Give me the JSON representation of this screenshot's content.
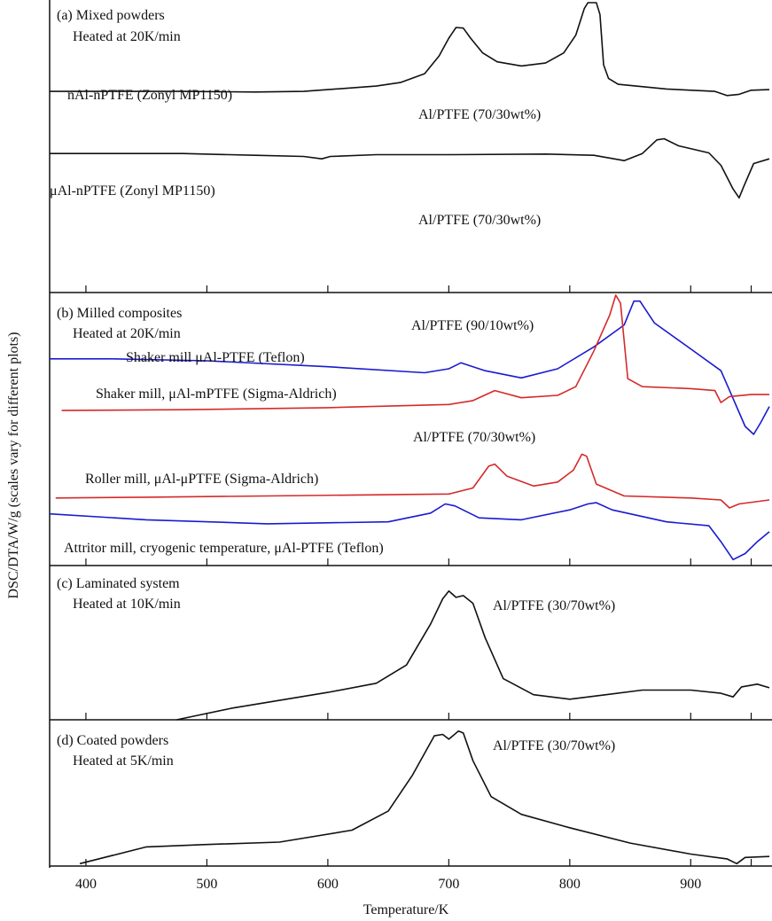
{
  "figure": {
    "ylabel": "DSC/DTA/W/g (scales vary for different plots)",
    "xlabel": "Temperature/K",
    "xticks": [
      400,
      500,
      600,
      700,
      800,
      900
    ],
    "xlim": [
      370,
      965
    ]
  },
  "colors": {
    "black": "#111111",
    "red": "#d42a2a",
    "blue": "#1a1ad0"
  },
  "chart_data": [
    {
      "type": "line",
      "panel": "a",
      "title": "(a) Mixed powders",
      "subtitle": "Heated at 20K/min",
      "xlabel": "Temperature/K",
      "ylabel": "DSC/DTA/W/g (scales vary for different plots)",
      "xlim": [
        370,
        965
      ],
      "ylim": [
        -1.2,
        3.7
      ],
      "series": [
        {
          "name": "nAl-nPTFE (Zonyl MP1150)",
          "annotation": "Al/PTFE (70/30wt%)",
          "color": "#111111",
          "points": [
            [
              370,
              2.2
            ],
            [
              420,
              2.2
            ],
            [
              480,
              2.2
            ],
            [
              540,
              2.19
            ],
            [
              580,
              2.2
            ],
            [
              600,
              2.23
            ],
            [
              640,
              2.29
            ],
            [
              660,
              2.35
            ],
            [
              680,
              2.5
            ],
            [
              692,
              2.8
            ],
            [
              700,
              3.1
            ],
            [
              706,
              3.28
            ],
            [
              712,
              3.27
            ],
            [
              718,
              3.1
            ],
            [
              728,
              2.85
            ],
            [
              740,
              2.7
            ],
            [
              760,
              2.63
            ],
            [
              780,
              2.68
            ],
            [
              795,
              2.85
            ],
            [
              805,
              3.15
            ],
            [
              812,
              3.6
            ],
            [
              815,
              3.7
            ],
            [
              822,
              3.7
            ],
            [
              825,
              3.5
            ],
            [
              828,
              2.65
            ],
            [
              832,
              2.42
            ],
            [
              840,
              2.32
            ],
            [
              880,
              2.24
            ],
            [
              920,
              2.2
            ],
            [
              930,
              2.13
            ],
            [
              940,
              2.15
            ],
            [
              950,
              2.22
            ],
            [
              965,
              2.23
            ]
          ]
        },
        {
          "name": "μAl-nPTFE (Zonyl MP1150)",
          "annotation": "Al/PTFE (70/30wt%)",
          "color": "#111111",
          "points": [
            [
              370,
              1.15
            ],
            [
              420,
              1.15
            ],
            [
              480,
              1.15
            ],
            [
              540,
              1.12
            ],
            [
              580,
              1.1
            ],
            [
              595,
              1.06
            ],
            [
              602,
              1.1
            ],
            [
              640,
              1.13
            ],
            [
              700,
              1.13
            ],
            [
              780,
              1.14
            ],
            [
              820,
              1.12
            ],
            [
              845,
              1.03
            ],
            [
              860,
              1.15
            ],
            [
              872,
              1.38
            ],
            [
              878,
              1.4
            ],
            [
              890,
              1.28
            ],
            [
              915,
              1.16
            ],
            [
              925,
              0.95
            ],
            [
              935,
              0.55
            ],
            [
              940,
              0.4
            ],
            [
              944,
              0.6
            ],
            [
              952,
              0.98
            ],
            [
              965,
              1.06
            ]
          ]
        }
      ]
    },
    {
      "type": "line",
      "panel": "b",
      "title": "(b) Milled composites",
      "subtitle": "Heated at 20K/min",
      "xlabel": "Temperature/K",
      "ylabel": "DSC/DTA/W/g (scales vary for different plots)",
      "xlim": [
        370,
        965
      ],
      "ylim": [
        -3.0,
        3.8
      ],
      "series": [
        {
          "name": "Shaker mill μAl-PTFE (Teflon)",
          "annotation": "Al/PTFE (90/10wt%)",
          "color": "#1a1ad0",
          "points": [
            [
              370,
              2.2
            ],
            [
              420,
              2.2
            ],
            [
              500,
              2.15
            ],
            [
              600,
              2.0
            ],
            [
              680,
              1.85
            ],
            [
              700,
              1.95
            ],
            [
              710,
              2.1
            ],
            [
              730,
              1.9
            ],
            [
              760,
              1.72
            ],
            [
              790,
              1.95
            ],
            [
              820,
              2.5
            ],
            [
              845,
              3.05
            ],
            [
              853,
              3.65
            ],
            [
              858,
              3.65
            ],
            [
              870,
              3.1
            ],
            [
              900,
              2.45
            ],
            [
              925,
              1.9
            ],
            [
              935,
              1.2
            ],
            [
              945,
              0.5
            ],
            [
              952,
              0.3
            ],
            [
              958,
              0.6
            ],
            [
              965,
              1.0
            ]
          ]
        },
        {
          "name": "Shaker mill, μAl-mPTFE (Sigma-Aldrich)",
          "annotation": "",
          "color": "#d42a2a",
          "points": [
            [
              380,
              0.9
            ],
            [
              480,
              0.92
            ],
            [
              600,
              0.97
            ],
            [
              700,
              1.05
            ],
            [
              720,
              1.15
            ],
            [
              738,
              1.4
            ],
            [
              760,
              1.22
            ],
            [
              790,
              1.28
            ],
            [
              805,
              1.5
            ],
            [
              820,
              2.4
            ],
            [
              833,
              3.3
            ],
            [
              838,
              3.8
            ],
            [
              842,
              3.6
            ],
            [
              848,
              1.7
            ],
            [
              860,
              1.5
            ],
            [
              900,
              1.45
            ],
            [
              920,
              1.4
            ],
            [
              925,
              1.1
            ],
            [
              932,
              1.25
            ],
            [
              950,
              1.3
            ],
            [
              965,
              1.3
            ]
          ]
        },
        {
          "name": "Roller mill, μAl-μPTFE (Sigma-Aldrich)",
          "annotation": "Al/PTFE (70/30wt%)",
          "color": "#d42a2a",
          "points": [
            [
              375,
              -1.3
            ],
            [
              450,
              -1.28
            ],
            [
              550,
              -1.25
            ],
            [
              700,
              -1.2
            ],
            [
              720,
              -1.05
            ],
            [
              733,
              -0.5
            ],
            [
              738,
              -0.45
            ],
            [
              748,
              -0.75
            ],
            [
              770,
              -1.0
            ],
            [
              790,
              -0.9
            ],
            [
              803,
              -0.6
            ],
            [
              810,
              -0.2
            ],
            [
              814,
              -0.25
            ],
            [
              822,
              -0.95
            ],
            [
              845,
              -1.25
            ],
            [
              900,
              -1.3
            ],
            [
              925,
              -1.35
            ],
            [
              932,
              -1.55
            ],
            [
              940,
              -1.45
            ],
            [
              965,
              -1.35
            ]
          ]
        },
        {
          "name": "Attritor mill, cryogenic temperature, μAl-PTFE (Teflon)",
          "annotation": "",
          "color": "#1a1ad0",
          "points": [
            [
              370,
              -1.7
            ],
            [
              450,
              -1.85
            ],
            [
              550,
              -1.95
            ],
            [
              650,
              -1.9
            ],
            [
              685,
              -1.68
            ],
            [
              697,
              -1.45
            ],
            [
              705,
              -1.5
            ],
            [
              725,
              -1.8
            ],
            [
              760,
              -1.85
            ],
            [
              800,
              -1.6
            ],
            [
              815,
              -1.45
            ],
            [
              822,
              -1.42
            ],
            [
              835,
              -1.6
            ],
            [
              880,
              -1.9
            ],
            [
              915,
              -2.0
            ],
            [
              925,
              -2.4
            ],
            [
              935,
              -2.85
            ],
            [
              945,
              -2.7
            ],
            [
              955,
              -2.4
            ],
            [
              965,
              -2.15
            ]
          ]
        }
      ]
    },
    {
      "type": "line",
      "panel": "c",
      "title": "(c) Laminated system",
      "subtitle": "Heated at 10K/min",
      "xlabel": "Temperature/K",
      "ylabel": "DSC/DTA/W/g (scales vary for different plots)",
      "xlim": [
        370,
        965
      ],
      "ylim": [
        0,
        3.3
      ],
      "series": [
        {
          "name": "Al/PTFE (30/70wt%)",
          "annotation": "Al/PTFE (30/70wt%)",
          "color": "#111111",
          "points": [
            [
              475,
              0
            ],
            [
              520,
              0.25
            ],
            [
              600,
              0.6
            ],
            [
              640,
              0.8
            ],
            [
              665,
              1.2
            ],
            [
              685,
              2.1
            ],
            [
              695,
              2.65
            ],
            [
              700,
              2.82
            ],
            [
              706,
              2.68
            ],
            [
              712,
              2.72
            ],
            [
              720,
              2.55
            ],
            [
              730,
              1.8
            ],
            [
              745,
              0.9
            ],
            [
              770,
              0.55
            ],
            [
              800,
              0.45
            ],
            [
              830,
              0.55
            ],
            [
              860,
              0.65
            ],
            [
              900,
              0.65
            ],
            [
              925,
              0.58
            ],
            [
              935,
              0.5
            ],
            [
              942,
              0.72
            ],
            [
              955,
              0.78
            ],
            [
              965,
              0.7
            ]
          ]
        }
      ]
    },
    {
      "type": "line",
      "panel": "d",
      "title": "(d) Coated powders",
      "subtitle": "Heated at 5K/min",
      "xlabel": "Temperature/K",
      "ylabel": "DSC/DTA/W/g (scales vary for different plots)",
      "xlim": [
        370,
        965
      ],
      "ylim": [
        0,
        3.0
      ],
      "series": [
        {
          "name": "Al/PTFE (30/70wt%)",
          "annotation": "Al/PTFE (30/70wt%)",
          "color": "#111111",
          "points": [
            [
              395,
              0.05
            ],
            [
              450,
              0.4
            ],
            [
              500,
              0.45
            ],
            [
              560,
              0.5
            ],
            [
              620,
              0.75
            ],
            [
              650,
              1.15
            ],
            [
              670,
              1.9
            ],
            [
              688,
              2.72
            ],
            [
              695,
              2.75
            ],
            [
              700,
              2.65
            ],
            [
              708,
              2.82
            ],
            [
              712,
              2.78
            ],
            [
              720,
              2.2
            ],
            [
              735,
              1.45
            ],
            [
              760,
              1.08
            ],
            [
              800,
              0.8
            ],
            [
              850,
              0.48
            ],
            [
              900,
              0.25
            ],
            [
              930,
              0.15
            ],
            [
              938,
              0.05
            ],
            [
              945,
              0.18
            ],
            [
              965,
              0.2
            ]
          ]
        }
      ]
    }
  ]
}
